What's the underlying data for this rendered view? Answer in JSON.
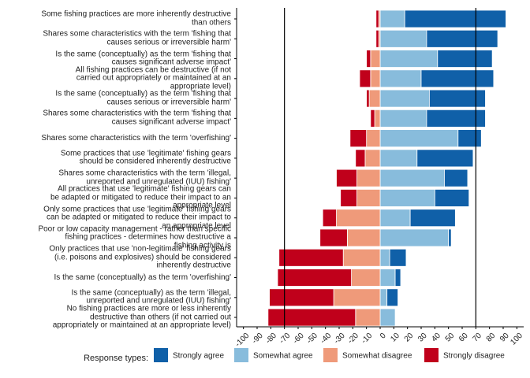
{
  "chart_data": {
    "type": "diverging-bar",
    "categories": [
      "Some fishing practices are more inherently destructive\nthan others",
      "Shares some characteristics with the term 'fishing that\ncauses serious or irreversible harm'",
      "Is the same (conceptually) as the term 'fishing that\ncauses significant adverse impact'",
      "All fishing practices can be destructive (if not\ncarried out appropriately or maintained at an\nappropriate level)",
      "Is the same (conceptually) as the term 'fishing that\ncauses serious or irreversible harm'",
      "Shares some characteristics with the term 'fishing that\ncauses significant adverse impact'",
      "Shares some characteristics with the term 'overfishing'",
      "Some practices that use 'legitimate' fishing gears\nshould be considered inherently destructive",
      "Shares some characteristics with the term 'illegal,\nunreported and unregulated (IUU) fishing'",
      "All practices that use 'legitimate' fishing gears can\nbe adapted or mitigated to reduce their impact to an\nappropriate level",
      "Only some practices that use 'legitimate' fishing gears\ncan be adapted or mitigated to reduce their impact to\nan appropriate level",
      "Poor or low capacity management - rather than specific\nfishing practices - determines how destructive a\nfishing activity is",
      "Only practices that use 'non-legitimate' fishing gears\n(i.e. poisons and explosives) should be considered\ninherently destructive",
      "Is the same (conceptually) as the term 'overfishing'",
      "Is the same (conceptually) as the term 'illegal,\nunreported and unregulated (IUU) fishing'",
      "No fishing practices are more or less inherently\ndestructive than others (if not carried out\nappropriately or maintained at an appropriate level)"
    ],
    "legend_title": "Response types:",
    "series": [
      {
        "name": "Strongly agree",
        "color": "#1060a8",
        "values": [
          74,
          52,
          40,
          53,
          41,
          43,
          17,
          41,
          17,
          25,
          33,
          2,
          12,
          4,
          8,
          0
        ]
      },
      {
        "name": "Somewhat agree",
        "color": "#88bcdc",
        "values": [
          18,
          34,
          42,
          30,
          36,
          34,
          57,
          27,
          47,
          40,
          22,
          50,
          7,
          11,
          5,
          11
        ]
      },
      {
        "name": "Somewhat disagree",
        "color": "#ef9a7a",
        "values": [
          -1,
          -1,
          -7,
          -7,
          -8,
          -4,
          -10,
          -11,
          -17,
          -17,
          -32,
          -24,
          -27,
          -21,
          -34,
          -18
        ]
      },
      {
        "name": "Strongly disagree",
        "color": "#c0001b",
        "values": [
          -2,
          -2,
          -3,
          -8,
          -2,
          -3,
          -12,
          -7,
          -15,
          -12,
          -10,
          -20,
          -47,
          -54,
          -47,
          -64
        ]
      }
    ],
    "xlim": [
      -105,
      105
    ],
    "xticks": [
      -100,
      -90,
      -80,
      -70,
      -60,
      -50,
      -40,
      -30,
      -20,
      -10,
      0,
      10,
      20,
      30,
      40,
      50,
      60,
      70,
      80,
      90,
      100
    ],
    "reference_lines": [
      -70,
      70
    ]
  }
}
